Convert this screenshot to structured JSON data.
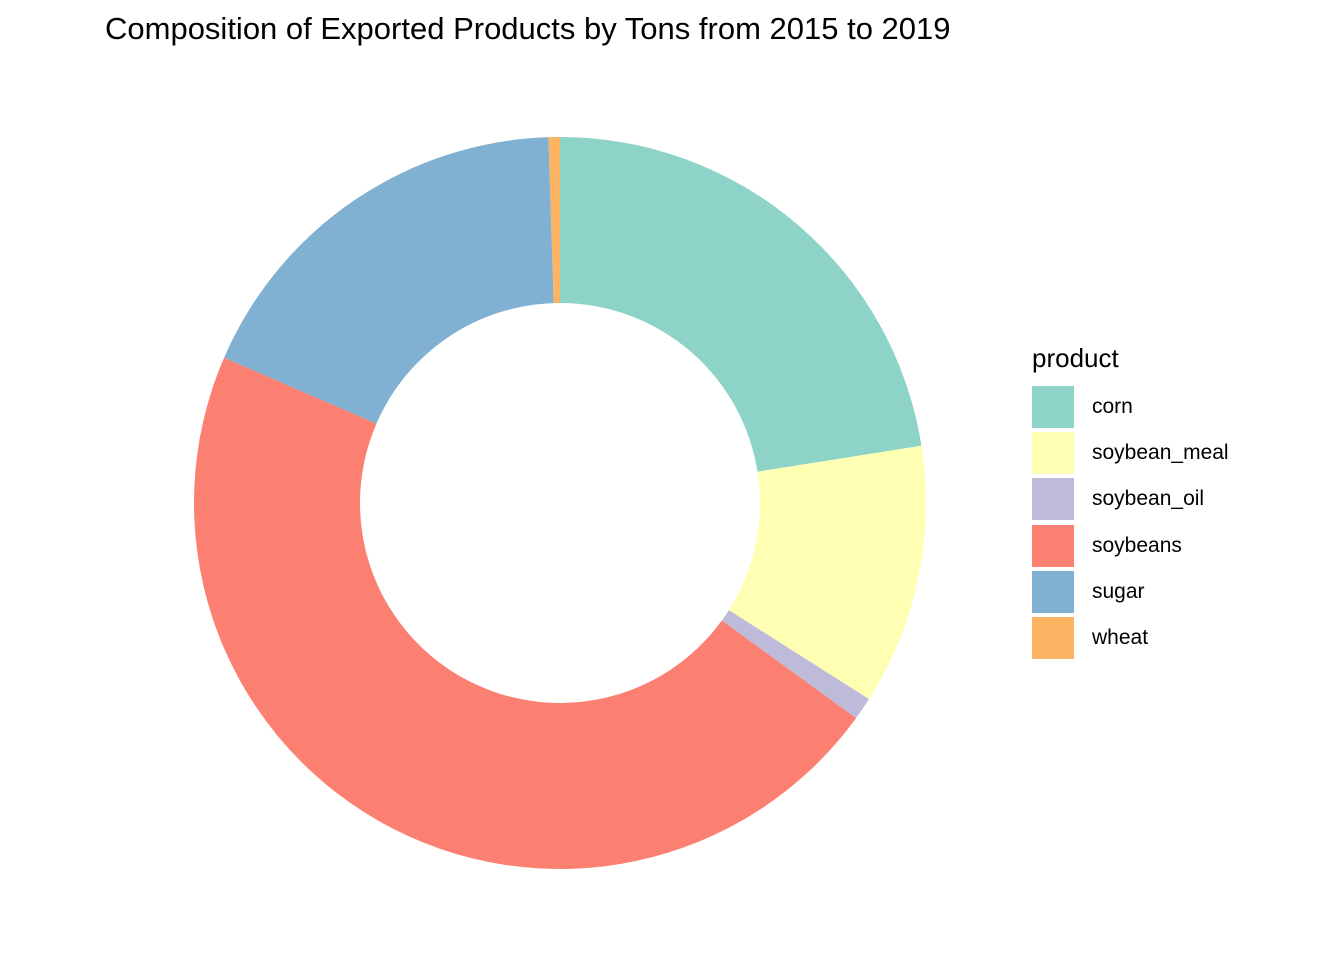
{
  "chart_data": {
    "type": "pie",
    "variant": "donut",
    "title": "Composition of Exported Products by Tons from 2015 to 2019",
    "legend_title": "product",
    "legend_position": "right",
    "slices": [
      {
        "label": "corn",
        "value": 22.5,
        "color": "#8DD3C7"
      },
      {
        "label": "soybean_meal",
        "value": 11.5,
        "color": "#FFFFB3"
      },
      {
        "label": "soybean_oil",
        "value": 1.0,
        "color": "#BEBADA"
      },
      {
        "label": "soybeans",
        "value": 46.5,
        "color": "#FB8072"
      },
      {
        "label": "sugar",
        "value": 18.0,
        "color": "#80B1D3"
      },
      {
        "label": "wheat",
        "value": 0.5,
        "color": "#FDB462"
      }
    ]
  }
}
